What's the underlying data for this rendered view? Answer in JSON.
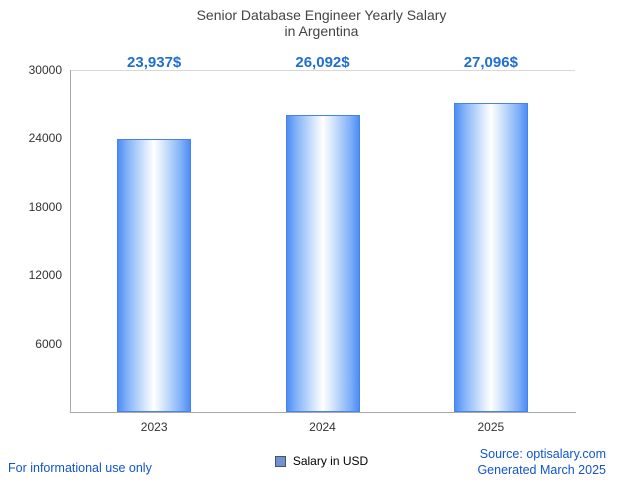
{
  "title": {
    "line1": "Senior Database Engineer Yearly Salary",
    "line2": "in Argentina"
  },
  "chart_data": {
    "type": "bar",
    "title": "Senior Database Engineer Yearly Salary in Argentina",
    "categories": [
      "2023",
      "2024",
      "2025"
    ],
    "values": [
      23937,
      26092,
      27096
    ],
    "value_labels": [
      "23,937$",
      "26,092$",
      "27,096$"
    ],
    "xlabel": "",
    "ylabel": "",
    "ylim": [
      0,
      30000
    ],
    "yticks": [
      6000,
      12000,
      18000,
      24000,
      30000
    ],
    "grid": false,
    "legend_position": "bottom",
    "legend": [
      {
        "label": "Salary in USD",
        "color": "#7191d0"
      }
    ],
    "colors": {
      "bar_edge": "#4a83e6",
      "bar_center": "#ffffff",
      "value_label": "#1f6fd0",
      "axis_text": "#333333",
      "title_text": "#444444",
      "footer_link": "#1155cc"
    }
  },
  "footer": {
    "left": "For informational use only",
    "source": "Source: optisalary.com",
    "generated": "Generated March 2025"
  }
}
